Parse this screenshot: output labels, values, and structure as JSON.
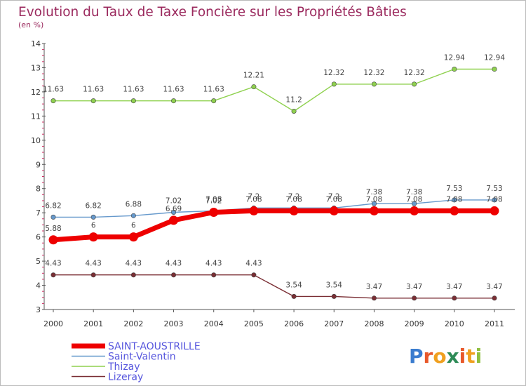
{
  "chart_data": {
    "type": "line",
    "title": "Evolution du Taux de Taxe Foncière sur les Propriétés Bâties",
    "subtitle": "(en %)",
    "x": [
      "2000",
      "2001",
      "2002",
      "2003",
      "2004",
      "2005",
      "2006",
      "2007",
      "2008",
      "2009",
      "2010",
      "2011"
    ],
    "ylim": [
      3,
      14
    ],
    "yticks": [
      3,
      4,
      5,
      6,
      7,
      8,
      9,
      10,
      11,
      12,
      13,
      14
    ],
    "grid": false,
    "legend_position": "bottom-left",
    "series": [
      {
        "name": "Lizeray",
        "color": "#7a2e34",
        "width": 1.4,
        "marker": 3.2,
        "values": [
          4.43,
          4.43,
          4.43,
          4.43,
          4.43,
          4.43,
          3.54,
          3.54,
          3.47,
          3.47,
          3.47,
          3.47
        ],
        "labels": [
          "4.43",
          "4.43",
          "4.43",
          "4.43",
          "4.43",
          "4.43",
          "3.54",
          "3.54",
          "3.47",
          "3.47",
          "3.47",
          "3.47"
        ],
        "label_offset": -13
      },
      {
        "name": "Thizay",
        "color": "#8fd14f",
        "width": 1.4,
        "marker": 3.2,
        "values": [
          11.63,
          11.63,
          11.63,
          11.63,
          11.63,
          12.21,
          11.2,
          12.32,
          12.32,
          12.32,
          12.94,
          12.94
        ],
        "labels": [
          "11.63",
          "11.63",
          "11.63",
          "11.63",
          "11.63",
          "12.21",
          "11.2",
          "12.32",
          "12.32",
          "12.32",
          "12.94",
          "12.94"
        ],
        "label_offset": -13
      },
      {
        "name": "Saint-Valentin",
        "color": "#6699cc",
        "width": 1.4,
        "marker": 3.2,
        "values": [
          6.82,
          6.82,
          6.88,
          7.02,
          7.08,
          7.2,
          7.2,
          7.2,
          7.38,
          7.38,
          7.53,
          7.53
        ],
        "labels": [
          "6.82",
          "6.82",
          "6.88",
          "7.02",
          "7.08",
          "7.2",
          "7.2",
          "7.2",
          "7.38",
          "7.38",
          "7.53",
          "7.53"
        ],
        "label_offset": -13
      },
      {
        "name": "SAINT-AOUSTRILLE",
        "color": "#ee0000",
        "width": 7,
        "marker": 6.5,
        "values": [
          5.88,
          6,
          6,
          6.69,
          7.02,
          7.08,
          7.08,
          7.08,
          7.08,
          7.08,
          7.08,
          7.08
        ],
        "labels": [
          "5.88",
          "6",
          "6",
          "6.69",
          "7.02",
          "7.08",
          "7.08",
          "7.08",
          "7.08",
          "7.08",
          "7.08",
          "7.08"
        ],
        "label_offset": -13
      }
    ],
    "legend": [
      {
        "name": "SAINT-AOUSTRILLE",
        "color": "#ee0000",
        "width": 7
      },
      {
        "name": "Saint-Valentin",
        "color": "#6699cc",
        "width": 1.4
      },
      {
        "name": "Thizay",
        "color": "#8fd14f",
        "width": 1.4
      },
      {
        "name": "Lizeray",
        "color": "#7a2e34",
        "width": 1.4
      }
    ]
  },
  "brand": {
    "letters": [
      "P",
      "r",
      "o",
      "x",
      "i",
      "t",
      "i"
    ],
    "colors": [
      "#3a7ccf",
      "#e8582a",
      "#f0a020",
      "#2e8b57",
      "#e8582a",
      "#f0a020",
      "#8fbf3f"
    ]
  }
}
